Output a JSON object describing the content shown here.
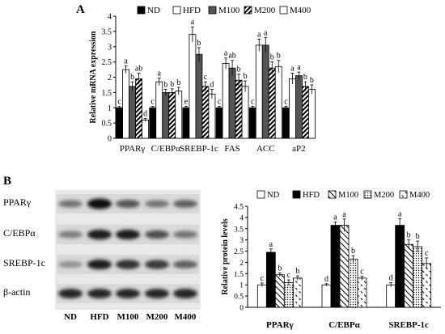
{
  "panel_a": {
    "letter": "A"
  },
  "panel_b": {
    "letter": "B",
    "blot_rows": [
      "PPARγ",
      "C/EBPα",
      "SREBP-1c",
      "β-actin"
    ],
    "lanes": [
      "ND",
      "HFD",
      "M100",
      "M200",
      "M400"
    ],
    "band_intensity": [
      [
        0.45,
        1.0,
        0.6,
        0.45,
        0.55
      ],
      [
        0.4,
        0.9,
        0.9,
        0.65,
        0.45
      ],
      [
        0.3,
        0.9,
        0.8,
        0.75,
        0.55
      ],
      [
        0.85,
        0.85,
        0.85,
        0.85,
        0.85
      ]
    ]
  },
  "chart_data": [
    {
      "type": "bar",
      "panel": "A",
      "ylabel": "Relative mRNA expression",
      "ylim": [
        0,
        4
      ],
      "yticks": [
        "0",
        "0.5",
        "1",
        "1.5",
        "2",
        "2.5",
        "3",
        "3.5",
        "4"
      ],
      "categories": [
        "PPARγ",
        "C/EBPα",
        "SREBP-1c",
        "FAS",
        "ACC",
        "aP2"
      ],
      "legend_position": "top",
      "series": [
        {
          "name": "ND",
          "values": [
            1.0,
            1.0,
            1.0,
            1.0,
            1.0,
            1.0
          ],
          "errors": [
            0.04,
            0.05,
            0.05,
            0.05,
            0.05,
            0.05
          ],
          "letters": [
            "c",
            "c",
            "e",
            "c",
            "c",
            "c"
          ]
        },
        {
          "name": "HFD",
          "values": [
            2.25,
            1.85,
            3.4,
            2.45,
            3.05,
            1.95
          ],
          "errors": [
            0.12,
            0.12,
            0.25,
            0.18,
            0.2,
            0.18
          ],
          "letters": [
            "a",
            "a",
            "a",
            "a",
            "a",
            "a"
          ]
        },
        {
          "name": "M100",
          "values": [
            1.7,
            1.5,
            2.75,
            2.3,
            3.05,
            2.05
          ],
          "errors": [
            0.15,
            0.1,
            0.22,
            0.25,
            0.25,
            0.12
          ],
          "letters": [
            "b",
            "b",
            "b",
            "ab",
            "a",
            "a"
          ]
        },
        {
          "name": "M200",
          "values": [
            1.95,
            1.5,
            1.7,
            1.9,
            2.3,
            1.7
          ],
          "errors": [
            0.18,
            0.12,
            0.15,
            0.2,
            0.2,
            0.15
          ],
          "letters": [
            "ab",
            "b",
            "c",
            "b",
            "b",
            "b"
          ]
        },
        {
          "name": "M400",
          "values": [
            0.6,
            1.55,
            1.45,
            1.7,
            2.35,
            1.6
          ],
          "errors": [
            0.05,
            0.12,
            0.15,
            0.18,
            0.2,
            0.15
          ],
          "letters": [
            "d",
            "b",
            "d",
            "b",
            "b",
            "b"
          ]
        }
      ]
    },
    {
      "type": "bar",
      "panel": "B",
      "ylabel": "Relative protein levels",
      "ylim": [
        0,
        4.5
      ],
      "yticks": [
        "0",
        "0.5",
        "1",
        "1.5",
        "2",
        "2.5",
        "3",
        "3.5",
        "4",
        "4.5"
      ],
      "categories": [
        "PPARγ",
        "C/EBPα",
        "SREBP-1c"
      ],
      "legend_position": "top",
      "series": [
        {
          "name": "ND",
          "values": [
            1.0,
            1.0,
            1.0
          ],
          "errors": [
            0.08,
            0.05,
            0.1
          ],
          "letters": [
            "c",
            "d",
            "d"
          ]
        },
        {
          "name": "HFD",
          "values": [
            2.45,
            3.65,
            3.65
          ],
          "errors": [
            0.15,
            0.15,
            0.3
          ],
          "letters": [
            "a",
            "a",
            "a"
          ]
        },
        {
          "name": "M100",
          "values": [
            1.45,
            3.65,
            2.8
          ],
          "errors": [
            0.08,
            0.28,
            0.2
          ],
          "letters": [
            "b",
            "a",
            "b"
          ]
        },
        {
          "name": "M200",
          "values": [
            1.1,
            2.15,
            2.7
          ],
          "errors": [
            0.12,
            0.15,
            0.25
          ],
          "letters": [
            "c",
            "b",
            "b"
          ]
        },
        {
          "name": "M400",
          "values": [
            1.3,
            1.3,
            1.95
          ],
          "errors": [
            0.1,
            0.08,
            0.25
          ],
          "letters": [
            "b",
            "c",
            "c"
          ]
        }
      ]
    }
  ]
}
